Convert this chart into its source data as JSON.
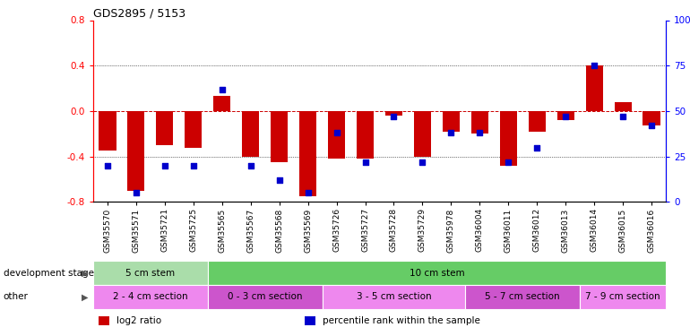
{
  "title": "GDS2895 / 5153",
  "samples": [
    "GSM35570",
    "GSM35571",
    "GSM35721",
    "GSM35725",
    "GSM35565",
    "GSM35567",
    "GSM35568",
    "GSM35569",
    "GSM35726",
    "GSM35727",
    "GSM35728",
    "GSM35729",
    "GSM35978",
    "GSM36004",
    "GSM36011",
    "GSM36012",
    "GSM36013",
    "GSM36014",
    "GSM36015",
    "GSM36016"
  ],
  "log2_ratio": [
    -0.35,
    -0.7,
    -0.3,
    -0.32,
    0.13,
    -0.4,
    -0.45,
    -0.75,
    -0.42,
    -0.42,
    -0.04,
    -0.4,
    -0.18,
    -0.2,
    -0.48,
    -0.18,
    -0.08,
    0.4,
    0.08,
    -0.13
  ],
  "percentile": [
    20,
    5,
    20,
    20,
    62,
    20,
    12,
    5,
    38,
    22,
    47,
    22,
    38,
    38,
    22,
    30,
    47,
    75,
    47,
    42
  ],
  "bar_color": "#cc0000",
  "dot_color": "#0000cc",
  "ylim": [
    -0.8,
    0.8
  ],
  "y2lim": [
    0,
    100
  ],
  "yticks_left": [
    -0.8,
    -0.4,
    0.0,
    0.4,
    0.8
  ],
  "y2ticks": [
    0,
    25,
    50,
    75,
    100
  ],
  "development_stage": {
    "groups": [
      {
        "label": "5 cm stem",
        "start": 0,
        "end": 4,
        "color": "#aaddaa"
      },
      {
        "label": "10 cm stem",
        "start": 4,
        "end": 20,
        "color": "#66cc66"
      }
    ]
  },
  "other": {
    "groups": [
      {
        "label": "2 - 4 cm section",
        "start": 0,
        "end": 4,
        "color": "#ee88ee"
      },
      {
        "label": "0 - 3 cm section",
        "start": 4,
        "end": 8,
        "color": "#cc55cc"
      },
      {
        "label": "3 - 5 cm section",
        "start": 8,
        "end": 13,
        "color": "#ee88ee"
      },
      {
        "label": "5 - 7 cm section",
        "start": 13,
        "end": 17,
        "color": "#cc55cc"
      },
      {
        "label": "7 - 9 cm section",
        "start": 17,
        "end": 20,
        "color": "#ee88ee"
      }
    ]
  },
  "legend_items": [
    {
      "label": "log2 ratio",
      "color": "#cc0000"
    },
    {
      "label": "percentile rank within the sample",
      "color": "#0000cc"
    }
  ],
  "bar_width": 0.6,
  "dot_size": 22
}
